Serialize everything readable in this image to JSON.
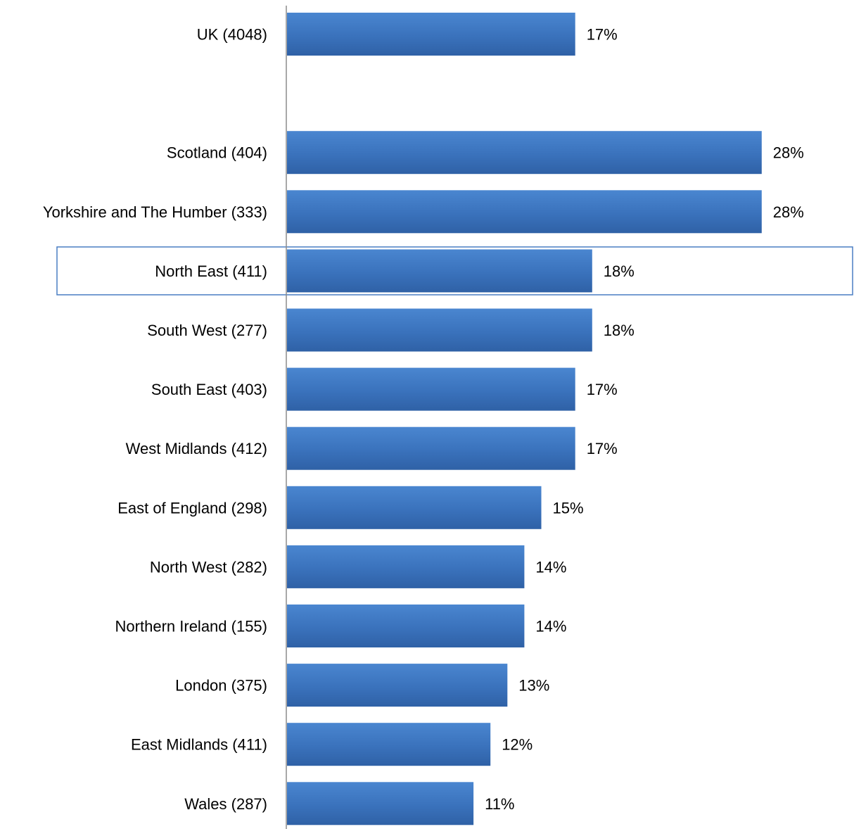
{
  "chart_data": {
    "type": "bar",
    "orientation": "horizontal",
    "title": "",
    "xlabel": "",
    "ylabel": "",
    "xlim": [
      0,
      30
    ],
    "grid": false,
    "legend": "none",
    "bar_color": "#3a70b8",
    "highlight_color": "#4a7ec4",
    "highlighted_category": "North East (411)",
    "categories": [
      "UK (4048)",
      "",
      "Scotland (404)",
      "Yorkshire and The Humber (333)",
      "North East (411)",
      "South West (277)",
      "South East (403)",
      "West Midlands (412)",
      "East of England (298)",
      "North West (282)",
      "Northern Ireland (155)",
      "London (375)",
      "East Midlands (411)",
      "Wales (287)"
    ],
    "values": [
      17,
      null,
      28,
      28,
      18,
      18,
      17,
      17,
      15,
      14,
      14,
      13,
      12,
      11
    ],
    "value_labels": [
      "17%",
      "",
      "28%",
      "28%",
      "18%",
      "18%",
      "17%",
      "17%",
      "15%",
      "14%",
      "14%",
      "13%",
      "12%",
      "11%"
    ]
  }
}
